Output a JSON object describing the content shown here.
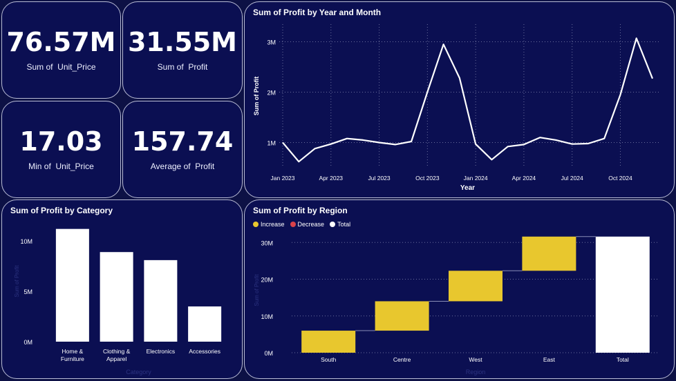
{
  "kpis": [
    {
      "value": "76.57M",
      "label": "Sum of  Unit_Price"
    },
    {
      "value": "31.55M",
      "label": "Sum of  Profit"
    },
    {
      "value": "17.03",
      "label": "Min of  Unit_Price"
    },
    {
      "value": "157.74",
      "label": "Average of  Profit"
    }
  ],
  "line_chart": {
    "title": "Sum of Profit by Year and Month",
    "xlabel": "Year",
    "ylabel": "Sum of Profit",
    "y_ticks": [
      "1M",
      "2M",
      "3M"
    ],
    "x_ticks": [
      "Jan 2023",
      "Apr 2023",
      "Jul 2023",
      "Oct 2023",
      "Jan 2024",
      "Apr 2024",
      "Jul 2024",
      "Oct 2024"
    ]
  },
  "bar_chart": {
    "title": "Sum of Profit by Category",
    "xlabel": "Category",
    "ylabel": "Sum of Profit",
    "y_ticks": [
      "0M",
      "5M",
      "10M"
    ],
    "categories": [
      "Home & Furniture",
      "Clothing & Apparel",
      "Electronics",
      "Accessories"
    ]
  },
  "waterfall_chart": {
    "title": "Sum of Profit by Region",
    "xlabel": "Region",
    "ylabel": "Sum of Profit",
    "legend": [
      {
        "label": "Increase",
        "color": "#e8c72e"
      },
      {
        "label": "Decrease",
        "color": "#d9424a"
      },
      {
        "label": "Total",
        "color": "#ffffff"
      }
    ],
    "y_ticks": [
      "0M",
      "10M",
      "20M",
      "30M"
    ],
    "categories": [
      "South",
      "Centre",
      "West",
      "East",
      "Total"
    ]
  },
  "chart_data": [
    {
      "type": "line",
      "title": "Sum of Profit by Year and Month",
      "xlabel": "Year",
      "ylabel": "Sum of Profit",
      "x": [
        "Jan 2023",
        "Feb 2023",
        "Mar 2023",
        "Apr 2023",
        "May 2023",
        "Jun 2023",
        "Jul 2023",
        "Aug 2023",
        "Sep 2023",
        "Oct 2023",
        "Nov 2023",
        "Dec 2023",
        "Jan 2024",
        "Feb 2024",
        "Mar 2024",
        "Apr 2024",
        "May 2024",
        "Jun 2024",
        "Jul 2024",
        "Aug 2024",
        "Sep 2024",
        "Oct 2024",
        "Nov 2024",
        "Dec 2024"
      ],
      "series": [
        {
          "values": [
            1.0,
            0.62,
            0.88,
            0.97,
            1.08,
            1.05,
            1.0,
            0.96,
            1.02,
            2.0,
            2.95,
            2.28,
            0.97,
            0.66,
            0.92,
            0.96,
            1.1,
            1.05,
            0.97,
            0.98,
            1.08,
            1.95,
            3.07,
            2.27
          ]
        }
      ],
      "y_unit": "M",
      "ylim": [
        0.5,
        3.35
      ],
      "grid": true
    },
    {
      "type": "bar",
      "title": "Sum of Profit by Category",
      "xlabel": "Category",
      "ylabel": "Sum of Profit",
      "categories": [
        "Home & Furniture",
        "Clothing & Apparel",
        "Electronics",
        "Accessories"
      ],
      "values": [
        11.2,
        8.9,
        8.1,
        3.5
      ],
      "y_unit": "M",
      "ylim": [
        0,
        12
      ]
    },
    {
      "type": "bar",
      "subtype": "waterfall",
      "title": "Sum of Profit by Region",
      "xlabel": "Region",
      "ylabel": "Sum of Profit",
      "categories": [
        "South",
        "Centre",
        "West",
        "East",
        "Total"
      ],
      "values": [
        6.0,
        8.0,
        8.3,
        9.3,
        31.6
      ],
      "kinds": [
        "increase",
        "increase",
        "increase",
        "increase",
        "total"
      ],
      "y_unit": "M",
      "ylim": [
        0,
        34
      ],
      "grid": true
    }
  ]
}
